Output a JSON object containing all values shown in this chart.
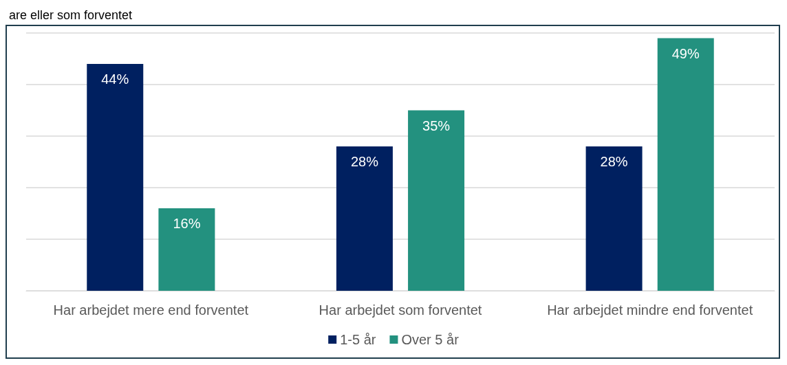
{
  "chart_data": {
    "type": "bar",
    "title": "are eller som forventet",
    "categories": [
      "Har arbejdet mere end forventet",
      "Har arbejdet som forventet",
      "Har arbejdet mindre end forventet"
    ],
    "series": [
      {
        "name": "1-5 år",
        "color": "#002060",
        "values": [
          44,
          28,
          28
        ],
        "value_labels": [
          "44%",
          "28%",
          "28%"
        ]
      },
      {
        "name": "Over 5 år",
        "color": "#23917f",
        "values": [
          16,
          35,
          49
        ],
        "value_labels": [
          "16%",
          "35%",
          "49%"
        ]
      }
    ],
    "tick_labels": "x",
    "grid": "y",
    "legend": "bottom"
  }
}
